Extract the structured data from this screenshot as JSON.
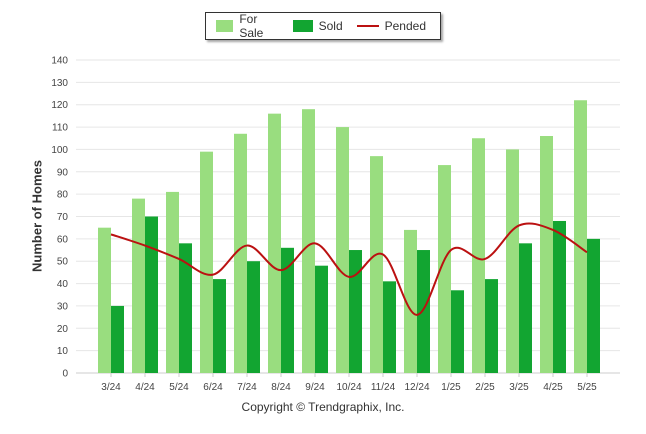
{
  "chart_data": {
    "type": "bar",
    "categories": [
      "3/24",
      "4/24",
      "5/24",
      "6/24",
      "7/24",
      "8/24",
      "9/24",
      "10/24",
      "11/24",
      "12/24",
      "1/25",
      "2/25",
      "3/25",
      "4/25",
      "5/25"
    ],
    "series": [
      {
        "name": "For Sale",
        "type": "bar",
        "color": "#99dd7f",
        "values": [
          65,
          78,
          81,
          99,
          107,
          116,
          118,
          110,
          97,
          64,
          93,
          105,
          100,
          106,
          122
        ]
      },
      {
        "name": "Sold",
        "type": "bar",
        "color": "#12a531",
        "values": [
          30,
          70,
          58,
          42,
          50,
          56,
          48,
          55,
          41,
          55,
          37,
          42,
          58,
          68,
          60
        ]
      },
      {
        "name": "Pended",
        "type": "line",
        "color": "#bb1111",
        "values": [
          62,
          57,
          51,
          44,
          57,
          46,
          58,
          43,
          53,
          26,
          55,
          51,
          66,
          64,
          54
        ]
      }
    ],
    "ylabel": "Number of Homes",
    "ylim": [
      0,
      140
    ],
    "yticks": [
      0,
      10,
      20,
      30,
      40,
      50,
      60,
      70,
      80,
      90,
      100,
      110,
      120,
      130,
      140
    ],
    "grid": true,
    "legend_position": "top-center"
  },
  "legend": {
    "for_sale": "For Sale",
    "sold": "Sold",
    "pended": "Pended"
  },
  "footer": "Copyright © Trendgraphix, Inc."
}
